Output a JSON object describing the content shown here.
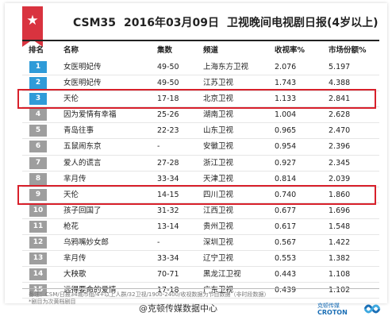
{
  "header": {
    "title_source": "CSM35",
    "title_date": "2016年03月09日",
    "title_text": "卫视晚间电视剧日报(4岁以上)",
    "star_icon": "star-icon"
  },
  "columns": {
    "rank": "排名",
    "name": "名称",
    "episodes": "集数",
    "channel": "频道",
    "rating": "收视率%",
    "share": "市场份额%"
  },
  "rows": [
    {
      "rank": "1",
      "name": "女医明妃传",
      "episodes": "49-50",
      "channel": "上海东方卫视",
      "rating": "2.076",
      "share": "5.197",
      "color": "#2f9bd8"
    },
    {
      "rank": "2",
      "name": "女医明妃传",
      "episodes": "49-50",
      "channel": "江苏卫视",
      "rating": "1.743",
      "share": "4.388",
      "color": "#2f9bd8"
    },
    {
      "rank": "3",
      "name": "天伦",
      "episodes": "17-18",
      "channel": "北京卫视",
      "rating": "1.133",
      "share": "2.841",
      "color": "#2f9bd8"
    },
    {
      "rank": "4",
      "name": "因为爱情有幸福",
      "episodes": "25-26",
      "channel": "湖南卫视",
      "rating": "1.004",
      "share": "2.628",
      "color": "#9e9e9e"
    },
    {
      "rank": "5",
      "name": "青岛往事",
      "episodes": "22-23",
      "channel": "山东卫视",
      "rating": "0.965",
      "share": "2.470",
      "color": "#9e9e9e"
    },
    {
      "rank": "6",
      "name": "五鼠闹东京",
      "episodes": "-",
      "channel": "安徽卫视",
      "rating": "0.954",
      "share": "2.396",
      "color": "#9e9e9e"
    },
    {
      "rank": "7",
      "name": "爱人的谎言",
      "episodes": "27-28",
      "channel": "浙江卫视",
      "rating": "0.927",
      "share": "2.345",
      "color": "#9e9e9e"
    },
    {
      "rank": "8",
      "name": "芈月传",
      "episodes": "33-34",
      "channel": "天津卫视",
      "rating": "0.814",
      "share": "2.039",
      "color": "#9e9e9e"
    },
    {
      "rank": "9",
      "name": "天伦",
      "episodes": "14-15",
      "channel": "四川卫视",
      "rating": "0.740",
      "share": "1.860",
      "color": "#9e9e9e"
    },
    {
      "rank": "10",
      "name": "孩子回国了",
      "episodes": "31-32",
      "channel": "江西卫视",
      "rating": "0.677",
      "share": "1.696",
      "color": "#9e9e9e"
    },
    {
      "rank": "11",
      "name": "枪花",
      "episodes": "13-14",
      "channel": "贵州卫视",
      "rating": "0.617",
      "share": "1.548",
      "color": "#9e9e9e"
    },
    {
      "rank": "12",
      "name": "乌鸦嘴妙女郎",
      "episodes": "-",
      "channel": "深圳卫视",
      "rating": "0.567",
      "share": "1.422",
      "color": "#9e9e9e"
    },
    {
      "rank": "13",
      "name": "芈月传",
      "episodes": "33-34",
      "channel": "辽宁卫视",
      "rating": "0.553",
      "share": "1.382",
      "color": "#9e9e9e"
    },
    {
      "rank": "14",
      "name": "大秧歌",
      "episodes": "70-71",
      "channel": "黑龙江卫视",
      "rating": "0.443",
      "share": "1.108",
      "color": "#9e9e9e"
    },
    {
      "rank": "15",
      "name": "远得要命的爱情",
      "episodes": "17-18",
      "channel": "广东卫视",
      "rating": "0.439",
      "share": "1.102",
      "color": "#9e9e9e"
    }
  ],
  "highlighted_ranks": [
    "3",
    "9"
  ],
  "highlight_color": "#d8202b",
  "footer": {
    "note1": "备注：CSM/日报34城市组/4+以上人群/32卫视/1900-2400/收视数据为节目数据（非时段数据）",
    "note2": "*剧目为次黄档剧目",
    "watermark": "@克顿传媒数据中心",
    "logo_cn": "克顿传媒",
    "logo_en": "CROTON"
  }
}
